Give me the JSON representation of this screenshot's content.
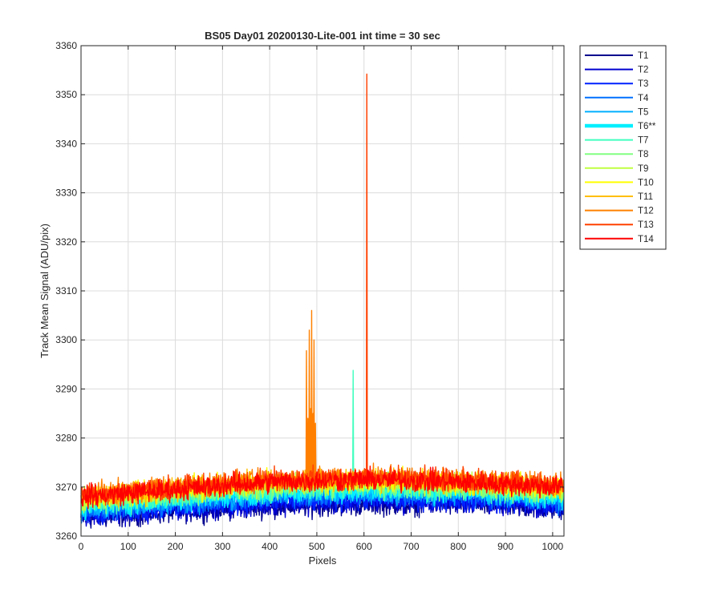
{
  "chart_data": {
    "type": "line",
    "title": "BS05 Day01 20200130-Lite-001 int time = 30 sec",
    "xlabel": "Pixels",
    "ylabel": "Track Mean Signal (ADU/pix)",
    "xlim": [
      0,
      1024
    ],
    "ylim": [
      3260,
      3360
    ],
    "xticks": [
      0,
      100,
      200,
      300,
      400,
      500,
      600,
      700,
      800,
      900,
      1000
    ],
    "yticks": [
      3260,
      3270,
      3280,
      3290,
      3300,
      3310,
      3320,
      3330,
      3340,
      3350,
      3360
    ],
    "grid": true,
    "legend_position": "outside top-right",
    "series_note_values": "Each series baseline is given at x = 0, 200, 400, 600, 800, 1023 (approx. mean ADU/pix; noisy ~±2 ADU around the baseline).",
    "baseline_x": [
      0,
      200,
      400,
      600,
      800,
      1023
    ],
    "series": [
      {
        "name": "T1",
        "color": "#00008F",
        "baseline": [
          3263.5,
          3265.0,
          3266.0,
          3266.5,
          3266.5,
          3265.5
        ]
      },
      {
        "name": "T2",
        "color": "#0000D0",
        "baseline": [
          3264.0,
          3265.5,
          3266.5,
          3267.0,
          3267.0,
          3266.0
        ]
      },
      {
        "name": "T3",
        "color": "#0020FF",
        "baseline": [
          3264.5,
          3266.0,
          3267.0,
          3267.5,
          3267.5,
          3266.5
        ]
      },
      {
        "name": "T4",
        "color": "#0070FF",
        "baseline": [
          3265.0,
          3266.5,
          3268.0,
          3268.5,
          3268.5,
          3267.0
        ]
      },
      {
        "name": "T5",
        "color": "#00B0FF",
        "baseline": [
          3265.5,
          3267.0,
          3268.5,
          3269.0,
          3269.0,
          3267.5
        ]
      },
      {
        "name": "T6**",
        "color": "#00EFFF",
        "baseline": [
          3266.0,
          3267.5,
          3269.0,
          3269.5,
          3269.0,
          3268.0
        ],
        "emphasized": true
      },
      {
        "name": "T7",
        "color": "#40FFBF",
        "baseline": [
          3266.5,
          3268.0,
          3269.5,
          3270.0,
          3269.5,
          3268.5
        ],
        "spikes": [
          {
            "x": 577,
            "y": 3293.8
          }
        ]
      },
      {
        "name": "T8",
        "color": "#80FF80",
        "baseline": [
          3267.0,
          3268.5,
          3270.0,
          3270.5,
          3270.0,
          3269.0
        ]
      },
      {
        "name": "T9",
        "color": "#BFFF40",
        "baseline": [
          3267.5,
          3269.0,
          3270.5,
          3271.0,
          3270.5,
          3269.5
        ]
      },
      {
        "name": "T10",
        "color": "#FFFF00",
        "baseline": [
          3268.0,
          3269.5,
          3271.0,
          3271.5,
          3271.0,
          3270.0
        ]
      },
      {
        "name": "T11",
        "color": "#FFBF00",
        "baseline": [
          3268.0,
          3269.5,
          3271.0,
          3271.5,
          3271.0,
          3270.0
        ]
      },
      {
        "name": "T12",
        "color": "#FF8000",
        "baseline": [
          3268.5,
          3270.0,
          3271.5,
          3272.0,
          3271.5,
          3270.5
        ],
        "spikes": [
          {
            "x": 478,
            "y": 3297.8
          },
          {
            "x": 481,
            "y": 3284.0
          },
          {
            "x": 484,
            "y": 3302.0
          },
          {
            "x": 487,
            "y": 3286.0
          },
          {
            "x": 489,
            "y": 3306.0
          },
          {
            "x": 492,
            "y": 3285.0
          },
          {
            "x": 494,
            "y": 3300.0
          },
          {
            "x": 497,
            "y": 3283.0
          }
        ]
      },
      {
        "name": "T13",
        "color": "#FF4000",
        "baseline": [
          3268.5,
          3270.0,
          3271.5,
          3272.0,
          3271.5,
          3270.5
        ],
        "spikes": [
          {
            "x": 606,
            "y": 3354.2
          }
        ]
      },
      {
        "name": "T14",
        "color": "#FF0000",
        "baseline": [
          3268.0,
          3269.5,
          3271.0,
          3271.5,
          3271.0,
          3270.0
        ]
      }
    ]
  }
}
